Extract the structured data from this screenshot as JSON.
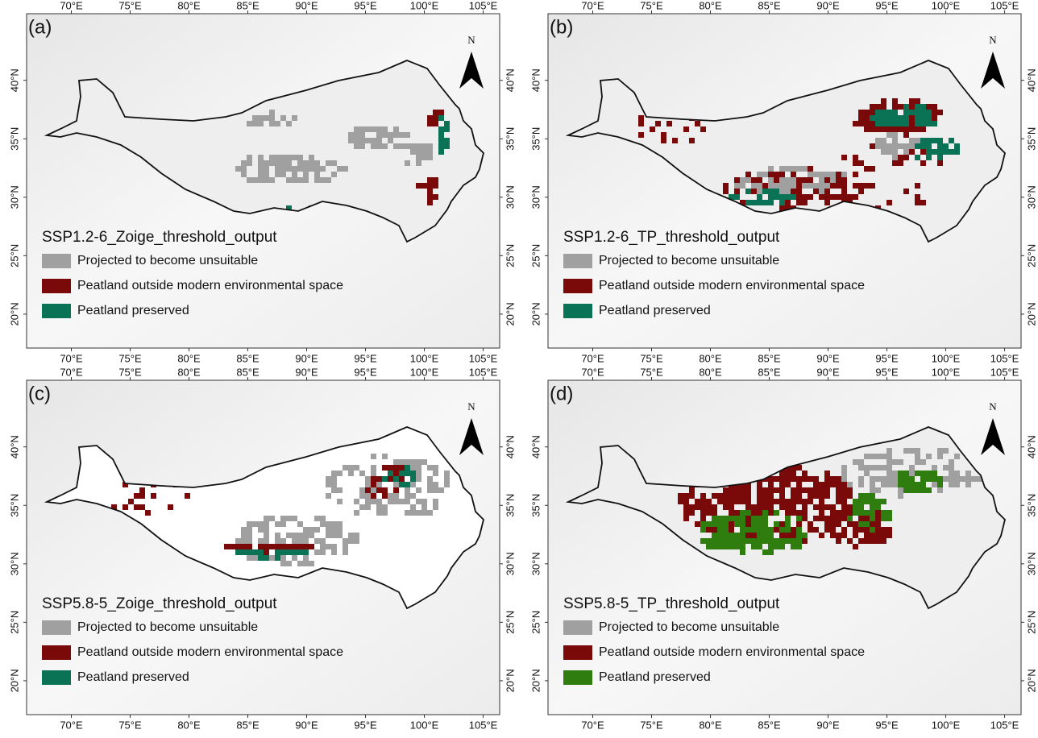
{
  "panels": [
    {
      "label": "(a)",
      "title": "SSP1.2-6_Zoige_threshold_output",
      "north": "N",
      "legend": [
        {
          "name": "Projected to become unsuitable",
          "color": "#a0a0a0"
        },
        {
          "name": "Peatland outside modern environmental space",
          "color": "#7a0a0a"
        },
        {
          "name": "Peatland preserved",
          "color": "#0b7355"
        }
      ],
      "xlim": [
        66.2,
        106.4
      ],
      "ylim": [
        17.1,
        45.7
      ],
      "lon_ticks": [
        {
          "value": 70,
          "label": "70°E"
        },
        {
          "value": 75,
          "label": "75°E"
        },
        {
          "value": 80,
          "label": "80°E"
        },
        {
          "value": 85,
          "label": "85°E"
        },
        {
          "value": 90,
          "label": "90°E"
        },
        {
          "value": 95,
          "label": "95°E"
        },
        {
          "value": 100,
          "label": "100°E"
        },
        {
          "value": 105,
          "label": "105°E"
        }
      ],
      "lat_ticks": [
        {
          "value": 20,
          "label": "20°N"
        },
        {
          "value": 25,
          "label": "25°N"
        },
        {
          "value": 30,
          "label": "30°N"
        },
        {
          "value": 35,
          "label": "35°N"
        },
        {
          "value": 40,
          "label": "40°N"
        }
      ]
    },
    {
      "label": "(b)",
      "title": "SSP1.2-6_TP_threshold_output",
      "north": "N",
      "legend": [
        {
          "name": "Projected to become unsuitable",
          "color": "#a0a0a0"
        },
        {
          "name": "Peatland outside modern environmental space",
          "color": "#7a0a0a"
        },
        {
          "name": "Peatland preserved",
          "color": "#0b7355"
        }
      ],
      "xlim": [
        66.2,
        106.4
      ],
      "ylim": [
        17.1,
        45.7
      ],
      "lon_ticks": [
        {
          "value": 70,
          "label": "70°E"
        },
        {
          "value": 75,
          "label": "75°E"
        },
        {
          "value": 80,
          "label": "80°E"
        },
        {
          "value": 85,
          "label": "85°E"
        },
        {
          "value": 90,
          "label": "90°E"
        },
        {
          "value": 95,
          "label": "95°E"
        },
        {
          "value": 100,
          "label": "100°E"
        },
        {
          "value": 105,
          "label": "105°E"
        }
      ],
      "lat_ticks": [
        {
          "value": 20,
          "label": "20°N"
        },
        {
          "value": 25,
          "label": "25°N"
        },
        {
          "value": 30,
          "label": "30°N"
        },
        {
          "value": 35,
          "label": "35°N"
        },
        {
          "value": 40,
          "label": "40°N"
        }
      ]
    },
    {
      "label": "(c)",
      "title": "SSP5.8-5_Zoige_threshold_output",
      "north": "N",
      "legend": [
        {
          "name": "Projected to become unsuitable",
          "color": "#a0a0a0"
        },
        {
          "name": "Peatland outside modern environmental space",
          "color": "#7a0a0a"
        },
        {
          "name": "Peatland preserved",
          "color": "#0b7355"
        }
      ],
      "xlim": [
        66.2,
        106.4
      ],
      "ylim": [
        17.1,
        45.7
      ],
      "lon_ticks": [
        {
          "value": 70,
          "label": "70°E"
        },
        {
          "value": 75,
          "label": "75°E"
        },
        {
          "value": 80,
          "label": "80°E"
        },
        {
          "value": 85,
          "label": "85°E"
        },
        {
          "value": 90,
          "label": "90°E"
        },
        {
          "value": 95,
          "label": "95°E"
        },
        {
          "value": 100,
          "label": "100°E"
        },
        {
          "value": 105,
          "label": "105°E"
        }
      ],
      "lat_ticks": [
        {
          "value": 20,
          "label": "20°N"
        },
        {
          "value": 25,
          "label": "25°N"
        },
        {
          "value": 30,
          "label": "30°N"
        },
        {
          "value": 35,
          "label": "35°N"
        },
        {
          "value": 40,
          "label": "40°N"
        }
      ]
    },
    {
      "label": "(d)",
      "title": "SSP5.8-5_TP_threshold_output",
      "north": "N",
      "legend": [
        {
          "name": "Projected to become unsuitable",
          "color": "#a0a0a0"
        },
        {
          "name": "Peatland outside modern environmental space",
          "color": "#7a0a0a"
        },
        {
          "name": "Peatland preserved",
          "color": "#2e7d0e"
        }
      ],
      "xlim": [
        66.2,
        106.4
      ],
      "ylim": [
        17.1,
        45.7
      ],
      "lon_ticks": [
        {
          "value": 70,
          "label": "70°E"
        },
        {
          "value": 75,
          "label": "75°E"
        },
        {
          "value": 80,
          "label": "80°E"
        },
        {
          "value": 85,
          "label": "85°E"
        },
        {
          "value": 90,
          "label": "90°E"
        },
        {
          "value": 95,
          "label": "95°E"
        },
        {
          "value": 100,
          "label": "100°E"
        },
        {
          "value": 105,
          "label": "105°E"
        }
      ],
      "lat_ticks": [
        {
          "value": 20,
          "label": "20°N"
        },
        {
          "value": 25,
          "label": "25°N"
        },
        {
          "value": 30,
          "label": "30°N"
        },
        {
          "value": 35,
          "label": "35°N"
        },
        {
          "value": 40,
          "label": "40°N"
        }
      ]
    }
  ]
}
